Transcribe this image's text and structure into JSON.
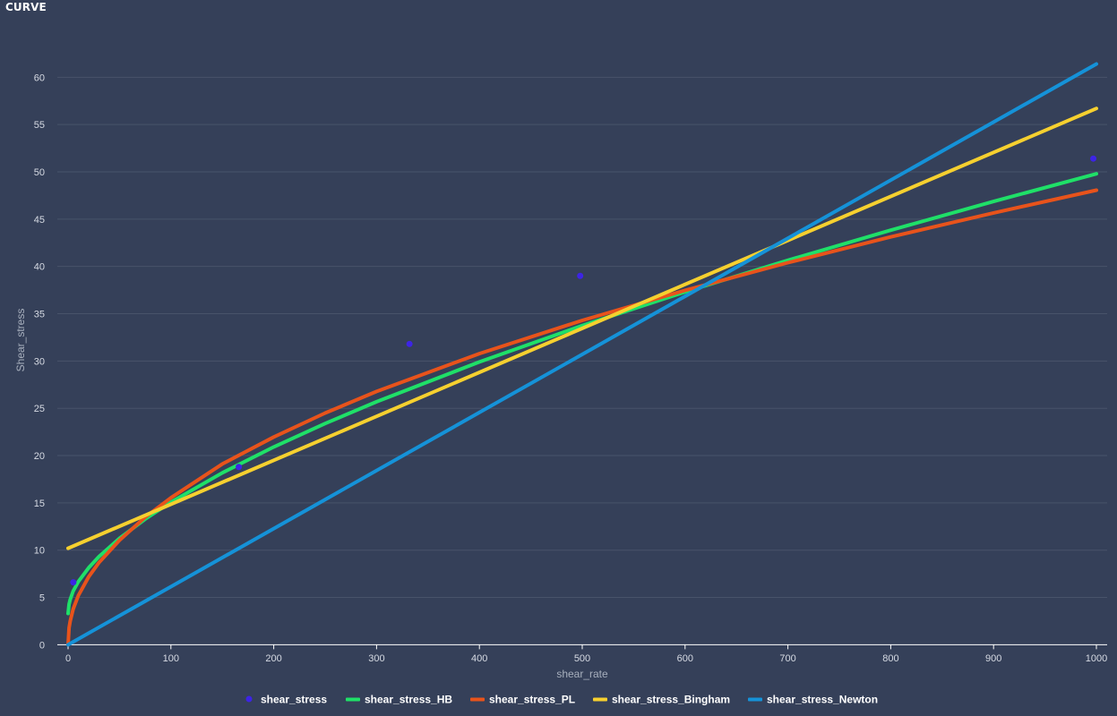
{
  "page": {
    "title": "CURVE"
  },
  "colors": {
    "background": "#354059",
    "grid": "#48536a",
    "axis": "#ffffff"
  },
  "chart_data": {
    "type": "line",
    "xlabel": "shear_rate",
    "ylabel": "Shear_stress",
    "xlim": [
      0,
      1000
    ],
    "ylim": [
      0,
      62
    ],
    "xticks": [
      0,
      100,
      200,
      300,
      400,
      500,
      600,
      700,
      800,
      900,
      1000
    ],
    "yticks": [
      0,
      5,
      10,
      15,
      20,
      25,
      30,
      35,
      40,
      45,
      50,
      55,
      60
    ],
    "grid": true,
    "legend_position": "bottom-center",
    "points": {
      "name": "shear_stress",
      "color": "#3d24e6",
      "x": [
        5.1,
        166,
        332,
        498,
        997
      ],
      "y": [
        6.6,
        18.8,
        31.8,
        39.0,
        51.4
      ]
    },
    "series": [
      {
        "name": "shear_stress_HB",
        "color": "#1fe068",
        "x": [
          0,
          1,
          2,
          5,
          10,
          20,
          30,
          50,
          75,
          100,
          150,
          200,
          250,
          300,
          400,
          500,
          600,
          700,
          800,
          900,
          1000
        ],
        "y": [
          3.3,
          4.29,
          4.76,
          5.68,
          6.68,
          8.14,
          9.31,
          11.25,
          13.29,
          15.07,
          18.18,
          20.91,
          23.39,
          25.69,
          29.9,
          33.74,
          37.3,
          40.65,
          43.83,
          46.87,
          49.79
        ]
      },
      {
        "name": "shear_stress_PL",
        "color": "#e8531b",
        "x": [
          0,
          1,
          2,
          5,
          10,
          20,
          30,
          50,
          75,
          100,
          150,
          200,
          250,
          300,
          400,
          500,
          600,
          700,
          800,
          900,
          1000
        ],
        "y": [
          0,
          1.78,
          2.46,
          3.78,
          5.21,
          7.18,
          8.68,
          11.05,
          13.49,
          15.54,
          19.11,
          21.96,
          24.5,
          26.78,
          30.78,
          34.29,
          37.47,
          40.4,
          43.12,
          45.66,
          48.06
        ]
      },
      {
        "name": "shear_stress_Bingham",
        "color": "#f6d02f",
        "x": [
          0,
          1000
        ],
        "y": [
          10.2,
          56.7
        ]
      },
      {
        "name": "shear_stress_Newton",
        "color": "#1592d8",
        "x": [
          0,
          1000
        ],
        "y": [
          0,
          61.4
        ]
      }
    ]
  }
}
